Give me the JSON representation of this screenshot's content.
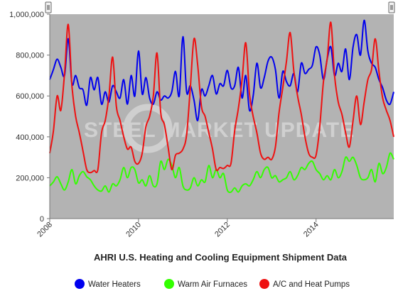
{
  "chart_data": {
    "type": "line",
    "title": "AHRI U.S. Heating and Cooling Equipment Shipment Data",
    "x_tick_labels": [
      "2008",
      "2010",
      "2012",
      "2014"
    ],
    "y_tick_labels": [
      "0",
      "200,000",
      "400,000",
      "600,000",
      "800,000",
      "1,000,000"
    ],
    "ylim": [
      0,
      1000000
    ],
    "x_range": [
      "2008-01",
      "2015-10"
    ],
    "grid": false,
    "legend_position": "bottom",
    "watermark": "STEEL MARKET UPDATE",
    "plot_background": "#b3b3b3",
    "x": [
      "2008-01",
      "2008-02",
      "2008-03",
      "2008-04",
      "2008-05",
      "2008-06",
      "2008-07",
      "2008-08",
      "2008-09",
      "2008-10",
      "2008-11",
      "2008-12",
      "2009-01",
      "2009-02",
      "2009-03",
      "2009-04",
      "2009-05",
      "2009-06",
      "2009-07",
      "2009-08",
      "2009-09",
      "2009-10",
      "2009-11",
      "2009-12",
      "2010-01",
      "2010-02",
      "2010-03",
      "2010-04",
      "2010-05",
      "2010-06",
      "2010-07",
      "2010-08",
      "2010-09",
      "2010-10",
      "2010-11",
      "2010-12",
      "2011-01",
      "2011-02",
      "2011-03",
      "2011-04",
      "2011-05",
      "2011-06",
      "2011-07",
      "2011-08",
      "2011-09",
      "2011-10",
      "2011-11",
      "2011-12",
      "2012-01",
      "2012-02",
      "2012-03",
      "2012-04",
      "2012-05",
      "2012-06",
      "2012-07",
      "2012-08",
      "2012-09",
      "2012-10",
      "2012-11",
      "2012-12",
      "2013-01",
      "2013-02",
      "2013-03",
      "2013-04",
      "2013-05",
      "2013-06",
      "2013-07",
      "2013-08",
      "2013-09",
      "2013-10",
      "2013-11",
      "2013-12",
      "2014-01",
      "2014-02",
      "2014-03",
      "2014-04",
      "2014-05",
      "2014-06",
      "2014-07",
      "2014-08",
      "2014-09",
      "2014-10",
      "2014-11",
      "2014-12",
      "2015-01",
      "2015-02",
      "2015-03",
      "2015-04",
      "2015-05",
      "2015-06",
      "2015-07",
      "2015-08",
      "2015-09",
      "2015-10"
    ],
    "series": [
      {
        "name": "Water Heaters",
        "color": "#0000ee",
        "values": [
          680000,
          730000,
          780000,
          740000,
          700000,
          880000,
          660000,
          700000,
          640000,
          630000,
          555000,
          690000,
          630000,
          690000,
          560000,
          620000,
          570000,
          650000,
          620000,
          590000,
          680000,
          560000,
          700000,
          600000,
          820000,
          610000,
          690000,
          590000,
          560000,
          620000,
          580000,
          600000,
          590000,
          620000,
          720000,
          600000,
          890000,
          620000,
          650000,
          580000,
          480000,
          630000,
          600000,
          650000,
          700000,
          610000,
          660000,
          650000,
          725000,
          640000,
          650000,
          740000,
          590000,
          700000,
          530000,
          600000,
          760000,
          640000,
          690000,
          770000,
          790000,
          730000,
          590000,
          720000,
          670000,
          650000,
          710000,
          620000,
          760000,
          710000,
          730000,
          750000,
          840000,
          800000,
          680000,
          780000,
          840000,
          700000,
          760000,
          720000,
          830000,
          680000,
          840000,
          900000,
          800000,
          970000,
          820000,
          760000,
          740000,
          680000,
          640000,
          580000,
          560000,
          620000
        ]
      },
      {
        "name": "Warm Air Furnaces",
        "color": "#33ff00",
        "values": [
          160000,
          180000,
          205000,
          170000,
          140000,
          180000,
          240000,
          170000,
          210000,
          230000,
          205000,
          190000,
          160000,
          140000,
          135000,
          160000,
          130000,
          170000,
          160000,
          190000,
          250000,
          200000,
          250000,
          240000,
          175000,
          190000,
          160000,
          210000,
          160000,
          170000,
          280000,
          240000,
          290000,
          260000,
          200000,
          250000,
          160000,
          140000,
          150000,
          200000,
          160000,
          190000,
          180000,
          260000,
          200000,
          240000,
          200000,
          220000,
          140000,
          130000,
          150000,
          130000,
          160000,
          170000,
          160000,
          190000,
          230000,
          200000,
          240000,
          250000,
          200000,
          210000,
          180000,
          190000,
          200000,
          230000,
          190000,
          210000,
          250000,
          240000,
          270000,
          280000,
          240000,
          220000,
          190000,
          210000,
          190000,
          240000,
          200000,
          230000,
          300000,
          280000,
          300000,
          260000,
          200000,
          190000,
          200000,
          240000,
          180000,
          270000,
          220000,
          250000,
          320000,
          290000
        ]
      },
      {
        "name": "A/C and Heat Pumps",
        "color": "#ee1111",
        "values": [
          320000,
          430000,
          600000,
          530000,
          710000,
          950000,
          650000,
          500000,
          420000,
          330000,
          240000,
          225000,
          235000,
          240000,
          420000,
          480000,
          600000,
          790000,
          550000,
          480000,
          400000,
          340000,
          350000,
          280000,
          270000,
          320000,
          450000,
          500000,
          600000,
          810000,
          520000,
          460000,
          350000,
          240000,
          310000,
          320000,
          340000,
          410000,
          640000,
          880000,
          750000,
          550000,
          500000,
          420000,
          340000,
          240000,
          250000,
          245000,
          260000,
          270000,
          430000,
          540000,
          680000,
          860000,
          610000,
          500000,
          420000,
          320000,
          290000,
          300000,
          290000,
          350000,
          520000,
          640000,
          770000,
          910000,
          720000,
          600000,
          510000,
          400000,
          320000,
          300000,
          310000,
          450000,
          670000,
          780000,
          960000,
          700000,
          570000,
          510000,
          420000,
          350000,
          480000,
          600000,
          460000,
          570000,
          680000,
          730000,
          880000,
          720000,
          590000,
          530000,
          480000,
          400000
        ]
      }
    ]
  }
}
